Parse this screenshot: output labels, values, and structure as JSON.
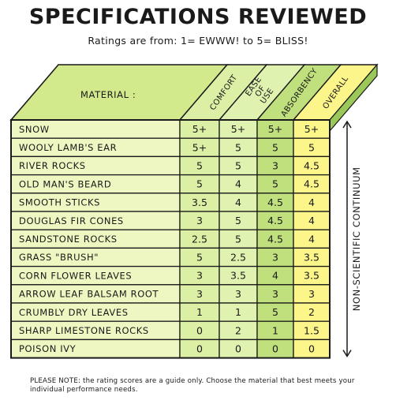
{
  "title": "SPECIFICATIONS REVIEWED",
  "subtitle": "Ratings are from:  1= EWWW!  to  5= BLISS!",
  "header": {
    "material_label": "MATERIAL :",
    "columns": [
      "COMFORT",
      "EASE OF USE",
      "ABSORBENCY",
      "OVERALL"
    ]
  },
  "side_label": "NON-SCIENTIFIC CONTINUUM",
  "rows": [
    {
      "material": "SNOW",
      "comfort": "5+",
      "ease": "5+",
      "absorbency": "5+",
      "overall": "5+"
    },
    {
      "material": "WOOLY LAMB'S EAR",
      "comfort": "5+",
      "ease": "5",
      "absorbency": "5",
      "overall": "5"
    },
    {
      "material": "RIVER ROCKS",
      "comfort": "5",
      "ease": "5",
      "absorbency": "3",
      "overall": "4.5"
    },
    {
      "material": "OLD MAN'S BEARD",
      "comfort": "5",
      "ease": "4",
      "absorbency": "5",
      "overall": "4.5"
    },
    {
      "material": "SMOOTH STICKS",
      "comfort": "3.5",
      "ease": "4",
      "absorbency": "4.5",
      "overall": "4"
    },
    {
      "material": "DOUGLAS FIR CONES",
      "comfort": "3",
      "ease": "5",
      "absorbency": "4.5",
      "overall": "4"
    },
    {
      "material": "SANDSTONE ROCKS",
      "comfort": "2.5",
      "ease": "5",
      "absorbency": "4.5",
      "overall": "4"
    },
    {
      "material": "GRASS \"BRUSH\"",
      "comfort": "5",
      "ease": "2.5",
      "absorbency": "3",
      "overall": "3.5"
    },
    {
      "material": "CORN FLOWER LEAVES",
      "comfort": "3",
      "ease": "3.5",
      "absorbency": "4",
      "overall": "3.5"
    },
    {
      "material": "ARROW LEAF BALSAM ROOT",
      "comfort": "3",
      "ease": "3",
      "absorbency": "3",
      "overall": "3"
    },
    {
      "material": "CRUMBLY DRY LEAVES",
      "comfort": "1",
      "ease": "1",
      "absorbency": "5",
      "overall": "2"
    },
    {
      "material": "SHARP LIMESTONE ROCKS",
      "comfort": "0",
      "ease": "2",
      "absorbency": "1",
      "overall": "1.5"
    },
    {
      "material": "POISON IVY",
      "comfort": "0",
      "ease": "0",
      "absorbency": "0",
      "overall": "0"
    }
  ],
  "note": "PLEASE NOTE: the rating scores are a guide only. Choose the material that best meets your individual performance needs.",
  "colors": {
    "material_cells": "#eef6c2",
    "top_panel": "#d2e98c",
    "comfort": "#dbf0a4",
    "ease": "#dff2b0",
    "absorbency": "#bfe07c",
    "overall": "#fbf58a",
    "side_face": "#9ac95a",
    "ink": "#1a1a1a"
  }
}
